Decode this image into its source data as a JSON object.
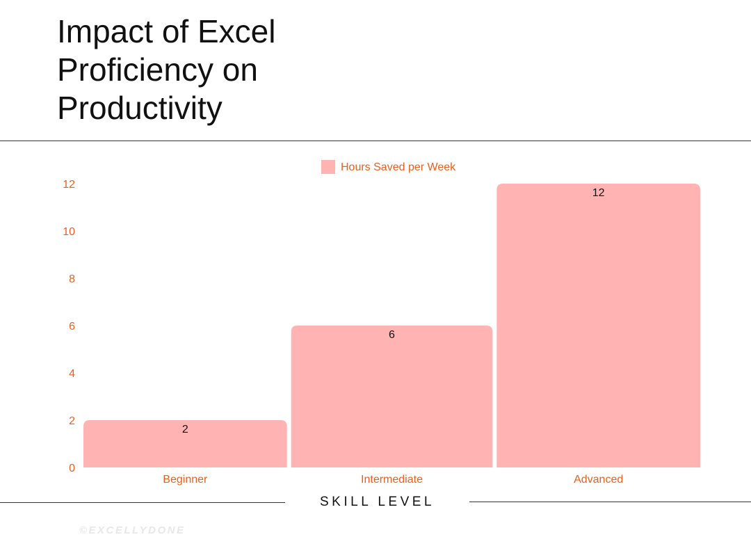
{
  "header": {
    "title": "Impact of Excel Proficiency on Productivity"
  },
  "footer": {
    "credit": "©EXCELLYDONE"
  },
  "colors": {
    "bar": "#ffb3b3",
    "axis_text": "#e8601c",
    "text": "#111111",
    "credit": "#e8e8e8"
  },
  "chart_data": {
    "type": "bar",
    "title": "Impact of Excel Proficiency on Productivity",
    "categories": [
      "Beginner",
      "Intermediate",
      "Advanced"
    ],
    "series": [
      {
        "name": "Hours Saved per Week",
        "values": [
          2,
          6,
          12
        ]
      }
    ],
    "data_labels": [
      "2",
      "6",
      "12"
    ],
    "xlabel": "SKILL LEVEL",
    "ylabel": "",
    "ylim": [
      0,
      12
    ],
    "yticks": [
      0,
      2,
      4,
      6,
      8,
      10,
      12
    ],
    "grid": false,
    "legend": "top-center"
  }
}
